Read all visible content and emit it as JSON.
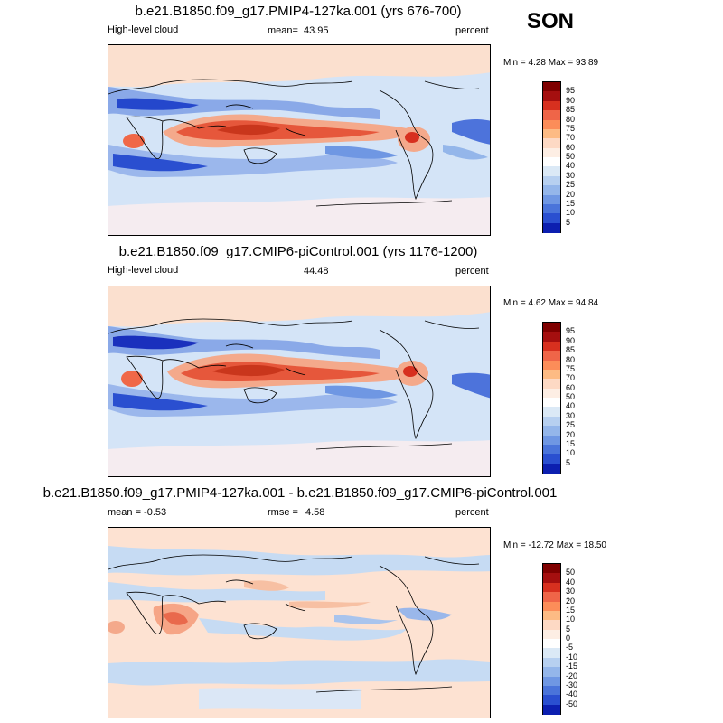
{
  "season": "SON",
  "panels": [
    {
      "title": "b.e21.B1850.f09_g17.PMIP4-127ka.001 (yrs 676-700)",
      "left_label": "High-level cloud",
      "stat_label": "mean=",
      "stat_value": "43.95",
      "units": "percent",
      "minmax": "Min =   4.28 Max =  93.89",
      "colorbar": {
        "labels": [
          "95",
          "90",
          "85",
          "80",
          "75",
          "70",
          "60",
          "50",
          "40",
          "30",
          "25",
          "20",
          "15",
          "10",
          "5"
        ],
        "colors": [
          "#7f0000",
          "#a50f0f",
          "#d7301f",
          "#ef6548",
          "#fc8d59",
          "#fdbb84",
          "#fdd9c4",
          "#fdeee4",
          "#ffffff",
          "#dbe9f6",
          "#b7d0f0",
          "#94b6ea",
          "#6f97e3",
          "#4a74da",
          "#2a4fd0",
          "#0c1fb0"
        ]
      }
    },
    {
      "title": "b.e21.B1850.f09_g17.CMIP6-piControl.001 (yrs 1176-1200)",
      "left_label": "High-level cloud",
      "stat_label": "",
      "stat_value": "44.48",
      "units": "percent",
      "minmax": "Min =   4.62 Max =  94.84",
      "colorbar": {
        "labels": [
          "95",
          "90",
          "85",
          "80",
          "75",
          "70",
          "60",
          "50",
          "40",
          "30",
          "25",
          "20",
          "15",
          "10",
          "5"
        ],
        "colors": [
          "#7f0000",
          "#a50f0f",
          "#d7301f",
          "#ef6548",
          "#fc8d59",
          "#fdbb84",
          "#fdd9c4",
          "#fdeee4",
          "#ffffff",
          "#dbe9f6",
          "#b7d0f0",
          "#94b6ea",
          "#6f97e3",
          "#4a74da",
          "#2a4fd0",
          "#0c1fb0"
        ]
      }
    },
    {
      "title": "b.e21.B1850.f09_g17.PMIP4-127ka.001 - b.e21.B1850.f09_g17.CMIP6-piControl.001",
      "left_label": "mean =  -0.53",
      "stat_label": "rmse =",
      "stat_value": "4.58",
      "units": "percent",
      "minmax": "Min = -12.72 Max =  18.50",
      "colorbar": {
        "labels": [
          "50",
          "40",
          "30",
          "20",
          "15",
          "10",
          "5",
          "0",
          "-5",
          "-10",
          "-15",
          "-20",
          "-30",
          "-40",
          "-50"
        ],
        "colors": [
          "#7f0000",
          "#a50f0f",
          "#d7301f",
          "#ef6548",
          "#fc8d59",
          "#fdbb84",
          "#fdd9c4",
          "#fdeee4",
          "#ffffff",
          "#dbe9f6",
          "#b7d0f0",
          "#94b6ea",
          "#6f97e3",
          "#4a74da",
          "#2a4fd0",
          "#0c1fb0"
        ]
      }
    }
  ]
}
